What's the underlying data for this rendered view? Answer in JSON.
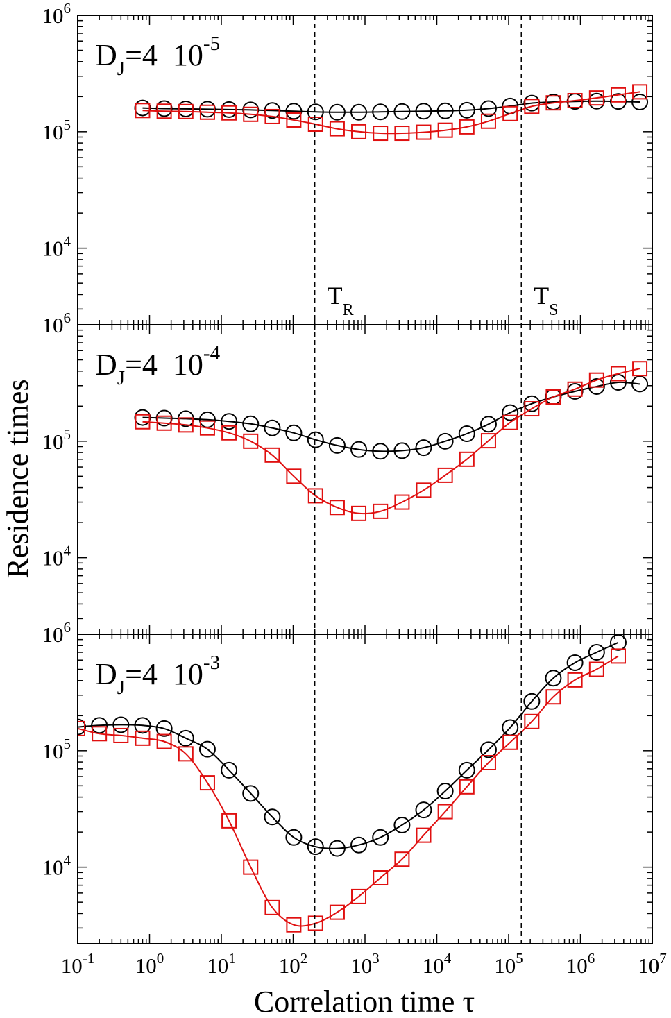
{
  "chart_data": {
    "type": "scatter",
    "xlabel": "Correlation time τ",
    "ylabel": "Residence times",
    "x_scale": "log",
    "y_scale": "log",
    "xlim": [
      0.1,
      10000000
    ],
    "x_ticks": [
      {
        "base": "10",
        "exp": "-1"
      },
      {
        "base": "10",
        "exp": "0"
      },
      {
        "base": "10",
        "exp": "1"
      },
      {
        "base": "10",
        "exp": "2"
      },
      {
        "base": "10",
        "exp": "3"
      },
      {
        "base": "10",
        "exp": "4"
      },
      {
        "base": "10",
        "exp": "5"
      },
      {
        "base": "10",
        "exp": "6"
      },
      {
        "base": "10",
        "exp": "7"
      }
    ],
    "vertical_lines": [
      {
        "x": 200,
        "label": "T",
        "sub": "R"
      },
      {
        "x": 150000,
        "label": "T",
        "sub": "S"
      }
    ],
    "series_styles": {
      "circles": {
        "color": "#000000",
        "marker": "circle"
      },
      "squares": {
        "color": "#e01010",
        "marker": "square"
      }
    },
    "panels": [
      {
        "label_main": "D",
        "label_sub": "J",
        "label_eq": "=4  10",
        "label_exp": "-5",
        "ylim": [
          2200,
          1000000
        ],
        "y_ticks": [
          {
            "base": "10",
            "exp": "4"
          },
          {
            "base": "10",
            "exp": "5"
          },
          {
            "base": "10",
            "exp": "6"
          }
        ],
        "circles": {
          "x": [
            0.8,
            1.6,
            3.2,
            6.4,
            12.8,
            25.6,
            51.2,
            102,
            205,
            410,
            819,
            1640,
            3280,
            6550,
            13100,
            26200,
            52400,
            105000,
            210000,
            419000,
            839000,
            1680000,
            3360000,
            6710000
          ],
          "y": [
            160000,
            158000,
            157000,
            156000,
            155000,
            154000,
            152000,
            150000,
            148000,
            147000,
            147000,
            148000,
            149000,
            150000,
            151000,
            153000,
            158000,
            166000,
            176000,
            180000,
            182000,
            183000,
            182000,
            180000
          ]
        },
        "squares": {
          "x": [
            0.8,
            1.6,
            3.2,
            6.4,
            12.8,
            25.6,
            51.2,
            102,
            205,
            410,
            819,
            1640,
            3280,
            6550,
            13100,
            26200,
            52400,
            105000,
            210000,
            419000,
            839000,
            1680000,
            3360000,
            6710000
          ],
          "y": [
            152000,
            150000,
            149000,
            147000,
            145000,
            141000,
            135000,
            126000,
            116000,
            106000,
            100000,
            97000,
            97000,
            99000,
            103000,
            110000,
            123000,
            143000,
            165000,
            177000,
            185000,
            195000,
            207000,
            220000
          ]
        }
      },
      {
        "label_main": "D",
        "label_sub": "J",
        "label_eq": "=4  10",
        "label_exp": "-4",
        "ylim": [
          2200,
          1000000
        ],
        "y_ticks": [
          {
            "base": "10",
            "exp": "4"
          },
          {
            "base": "10",
            "exp": "5"
          },
          {
            "base": "10",
            "exp": "6"
          }
        ],
        "circles": {
          "x": [
            0.8,
            1.6,
            3.2,
            6.4,
            12.8,
            25.6,
            51.2,
            102,
            205,
            410,
            819,
            1640,
            3280,
            6550,
            13100,
            26200,
            52400,
            105000,
            210000,
            419000,
            839000,
            1680000,
            3360000,
            6710000
          ],
          "y": [
            160000,
            158000,
            156000,
            153000,
            148000,
            141000,
            130000,
            118000,
            103000,
            92000,
            85000,
            82000,
            83000,
            88000,
            100000,
            116000,
            140000,
            176000,
            210000,
            240000,
            268000,
            295000,
            320000,
            310000
          ]
        },
        "squares": {
          "x": [
            0.8,
            1.6,
            3.2,
            6.4,
            12.8,
            25.6,
            51.2,
            102,
            205,
            410,
            819,
            1640,
            3280,
            6550,
            13100,
            26200,
            52400,
            105000,
            210000,
            419000,
            839000,
            1680000,
            3360000,
            6710000
          ],
          "y": [
            147000,
            143000,
            138000,
            130000,
            118000,
            100000,
            76000,
            50000,
            34000,
            27000,
            24000,
            25000,
            30000,
            38000,
            51000,
            70000,
            101000,
            145000,
            190000,
            240000,
            280000,
            335000,
            380000,
            420000
          ]
        }
      },
      {
        "label_main": "D",
        "label_sub": "J",
        "label_eq": "=4  10",
        "label_exp": "-3",
        "ylim": [
          2200,
          1000000
        ],
        "y_ticks": [
          {
            "base": "10",
            "exp": "4"
          },
          {
            "base": "10",
            "exp": "5"
          },
          {
            "base": "10",
            "exp": "6"
          }
        ],
        "circles": {
          "x": [
            0.1,
            0.2,
            0.4,
            0.8,
            1.6,
            3.2,
            6.4,
            12.8,
            25.6,
            51.2,
            102,
            205,
            410,
            819,
            1640,
            3280,
            6550,
            13100,
            26200,
            52400,
            105000,
            210000,
            419000,
            839000,
            1680000,
            3360000
          ],
          "y": [
            160000,
            165000,
            167000,
            165000,
            155000,
            128000,
            103000,
            68000,
            43000,
            27000,
            18000,
            15000,
            14500,
            15500,
            18000,
            23000,
            31000,
            45000,
            68000,
            102000,
            158000,
            265000,
            420000,
            570000,
            700000,
            850000
          ]
        },
        "squares": {
          "x": [
            0.1,
            0.2,
            0.4,
            0.8,
            1.6,
            3.2,
            6.4,
            12.8,
            25.6,
            51.2,
            102,
            205,
            410,
            819,
            1640,
            3280,
            6550,
            13100,
            26200,
            52400,
            105000,
            210000,
            419000,
            839000,
            1680000,
            3360000
          ],
          "y": [
            155000,
            140000,
            135000,
            128000,
            120000,
            94000,
            53000,
            25000,
            10000,
            4500,
            3200,
            3300,
            4100,
            5600,
            8100,
            11700,
            18800,
            30000,
            49000,
            79000,
            118000,
            178000,
            290000,
            405000,
            500000,
            650000
          ]
        }
      }
    ]
  }
}
